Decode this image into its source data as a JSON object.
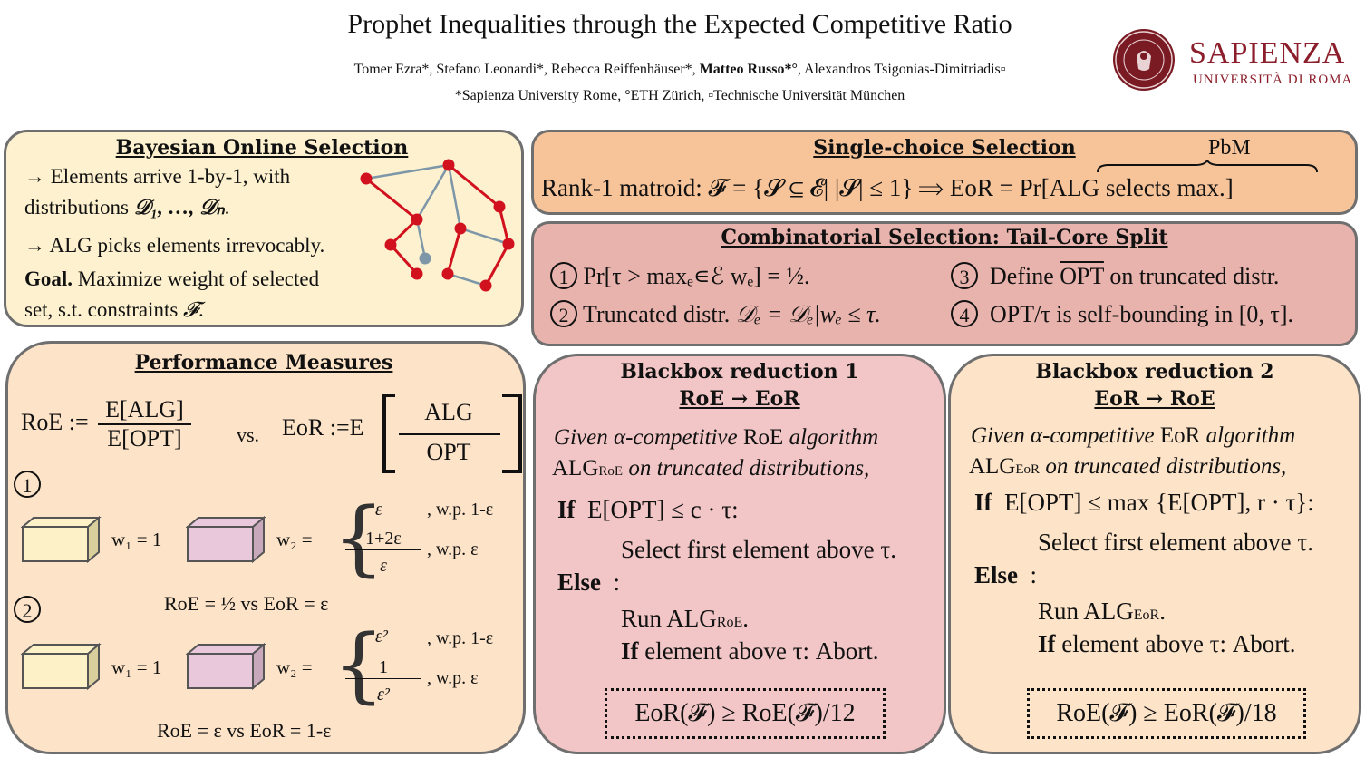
{
  "header": {
    "title": "Prophet Inequalities through the Expected Competitive Ratio",
    "authors_pre": "Tomer Ezra*, Stefano Leonardi*, Rebecca Reiffenhäuser*, ",
    "authors_bold": "Matteo Russo*°",
    "authors_post": ", Alexandros Tsigonias-Dimitriadis▫",
    "affiliations": "*Sapienza University Rome, °ETH Zürich, ▫Technische Universität München",
    "logo_name": "SAPIENZA",
    "logo_sub": "UNIVERSITÀ DI ROMA",
    "seal_text": "STVDIVM VRBIS"
  },
  "bos": {
    "heading": "Bayesian Online Selection",
    "line1": "→ Elements arrive 1-by-1, with",
    "line2a": "distributions ",
    "line2b": "𝒟₁, …, 𝒟ₙ",
    "line2c": ".",
    "line3": "→ ALG picks elements irrevocably.",
    "goal_label": "Goal.",
    "line4": " Maximize weight of selected",
    "line5": "set, s.t. constraints ",
    "line5b": "𝓕",
    "line5c": "."
  },
  "perf": {
    "heading": "Performance Measures",
    "roe_label": "RoE :=",
    "roe_num": "E[ALG]",
    "roe_den": "E[OPT]",
    "vs": "vs.",
    "eor_label": "EoR :=E",
    "eor_num": "ALG",
    "eor_den": "OPT",
    "ex1_circle": "1",
    "ex2_circle": "2",
    "w1_label": "w₁ = 1",
    "w2_label": "w₂ =",
    "ex1_case1": "ε",
    "ex1_case2_num": "1+2ε",
    "ex1_case2_den": "ε",
    "ex1_wp1": ", w.p. 1-ε",
    "ex1_wp2": ", w.p. ε",
    "ex1_result": "RoE = ½  vs  EoR = ε",
    "ex2_case1": "ε²",
    "ex2_case2_num": "1",
    "ex2_case2_den": "ε²",
    "ex2_wp1": ", w.p. 1-ε",
    "ex2_wp2": ", w.p. ε",
    "ex2_result": "RoE = ε  vs  EoR = 1-ε"
  },
  "single": {
    "heading": "Single-choice Selection",
    "line": "Rank-1 matroid:  𝓕 = {𝓢 ⊆ 𝓔| |𝓢| ≤ 1}  ⟹  EoR = Pr[ALG selects max.]",
    "brace_label": "PbM"
  },
  "comb": {
    "heading": "Combinatorial Selection: Tail-Core Split",
    "item1_num": "1",
    "item1": "Pr[τ > maxₑ∊ℰ wₑ] = ½.",
    "item2_num": "2",
    "item2a": "Truncated distr. ",
    "item2b": "𝒟ₑ = 𝒟ₑ|wₑ ≤ τ.",
    "item3_num": "3",
    "item3a": "Define ",
    "item3b": "OPT",
    "item3c": " on truncated distr.",
    "item4_num": "4",
    "item4": "OPT/τ is self-bounding in [0, τ]."
  },
  "bb1": {
    "heading": "Blackbox reduction 1",
    "subheading": "RoE → EoR",
    "given1a": "Given α-competitive ",
    "given1b": "RoE",
    "given1c": " algorithm",
    "given2a": "ALG",
    "given2sub": "RoE",
    "given2b": " on truncated distributions,",
    "if_kw": "If",
    "if_cond": "E[OPT] ≤ c · τ:",
    "then1": "Select first element above τ.",
    "else_kw": "Else",
    "colon": ":",
    "run": "Run ALG",
    "run_sub": "RoE",
    "run_end": ".",
    "if2_kw": "If",
    "if2": " element above τ: Abort.",
    "result": "EoR(𝓕) ≥ RoE(𝓕)/12"
  },
  "bb2": {
    "heading": "Blackbox reduction 2",
    "subheading": "EoR → RoE",
    "given1a": "Given α-competitive ",
    "given1b": "EoR",
    "given1c": " algorithm",
    "given2a": "ALG",
    "given2sub": "EoR",
    "given2b": " on truncated distributions,",
    "if_kw": "If",
    "if_cond": "E[OPT] ≤ max {E[OPT], r · τ}:",
    "then1": "Select first element above τ.",
    "else_kw": "Else",
    "colon": ":",
    "run": "Run ALG",
    "run_sub": "EoR",
    "run_end": ".",
    "if2_kw": "If",
    "if2": " element above τ: Abort.",
    "result": "RoE(𝓕) ≥ EoR(𝓕)/18"
  },
  "colors": {
    "bos_bg": "#fdf1cf",
    "perf_bg": "#fde3c8",
    "single_bg": "#f7c49a",
    "comb_bg": "#e9b3ad",
    "bb1_bg": "#f2c6c6",
    "bb2_bg": "#fde3c8",
    "graph_red": "#d1121e",
    "graph_edge": "#7d96a8",
    "cube_yellow": "#fdf1c8",
    "cube_purple": "#e8c8da"
  }
}
